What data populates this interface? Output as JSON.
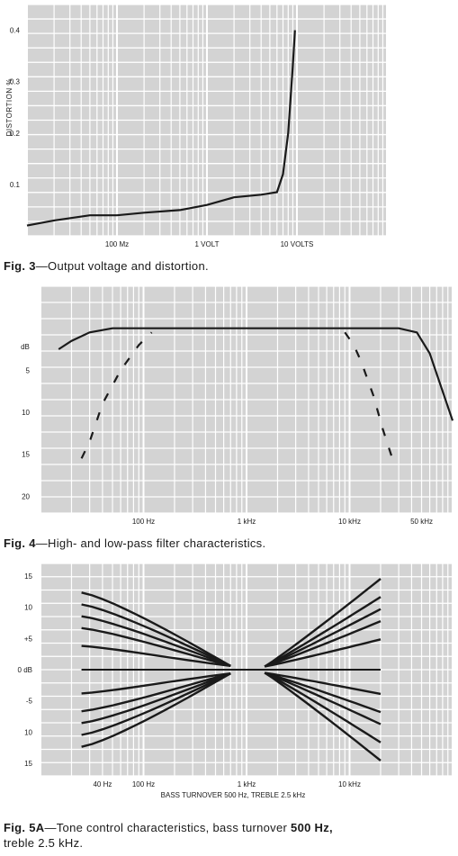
{
  "figures": [
    {
      "caption_label": "Fig. 3",
      "caption_text": "—Output voltage and distortion."
    },
    {
      "caption_label": "Fig. 4",
      "caption_text": "—High- and low-pass filter characteristics."
    },
    {
      "caption_label": "Fig. 5A",
      "caption_text_1": "—Tone control characteristics, bass turnover ",
      "caption_bold_1": "500 Hz,",
      "caption_text_2": "treble 2.5 kHz."
    }
  ],
  "colors": {
    "background": "#d3d3d3",
    "grid": "#ffffff",
    "curve": "#1a1a1a"
  },
  "chart_data": [
    {
      "type": "line",
      "title": "",
      "ylabel": "DISTORTION %",
      "xlabel": "",
      "x_scale": "log",
      "x_ticks": [
        "100 Mz",
        "1 VOLT",
        "10 VOLTS"
      ],
      "y_ticks": [
        "0.4",
        "0.3",
        "0.2",
        "0.1"
      ],
      "ylim": [
        0,
        0.45
      ],
      "series": [
        {
          "x": [
            0.01,
            0.02,
            0.05,
            0.1,
            0.2,
            0.5,
            1,
            2,
            4,
            6,
            7,
            8,
            9,
            9.5
          ],
          "y": [
            0.02,
            0.03,
            0.04,
            0.04,
            0.045,
            0.05,
            0.06,
            0.075,
            0.08,
            0.085,
            0.12,
            0.2,
            0.33,
            0.4
          ]
        }
      ]
    },
    {
      "type": "line",
      "title": "",
      "ylabel": "dB",
      "xlabel": "",
      "x_scale": "log",
      "x_ticks": [
        "100 Hz",
        "1 kHz",
        "10 kHz",
        "50 kHz"
      ],
      "y_ticks": [
        "5",
        "10",
        "15",
        "20"
      ],
      "ylim": [
        22,
        -5
      ],
      "series": [
        {
          "x": [
            15,
            20,
            30,
            50,
            100,
            1000,
            10000,
            30000,
            45000,
            60000,
            80000,
            100000
          ],
          "y": [
            2.5,
            1.5,
            0.5,
            0,
            0,
            0,
            0,
            0,
            0.5,
            3,
            7.5,
            11
          ]
        },
        {
          "x": [
            25,
            30,
            40,
            60,
            90,
            120
          ],
          "y": [
            15.5,
            13.5,
            9,
            5,
            2,
            0.5
          ]
        },
        {
          "x": [
            9000,
            11000,
            13000,
            17000,
            21000,
            26000
          ],
          "y": [
            0.5,
            2,
            4,
            8,
            12,
            15.5
          ]
        }
      ]
    },
    {
      "type": "line",
      "title": "",
      "ylabel": "",
      "xlabel": "BASS TURNOVER 500 Hz, TREBLE 2.5 kHz",
      "x_scale": "log",
      "x_ticks": [
        "40 Hz",
        "100 Hz",
        "1 kHz",
        "10 kHz"
      ],
      "y_ticks": [
        "15",
        "10",
        "+5",
        "",
        "0 dB",
        "-5",
        "10",
        "15"
      ],
      "ylim": [
        -17,
        17
      ],
      "bass_end_levels_db": [
        13,
        11,
        9,
        7,
        4,
        0,
        -4,
        -7,
        -9,
        -11,
        -13
      ],
      "treble_end_levels_db": [
        15,
        12,
        10,
        8,
        5,
        0,
        -4,
        -7,
        -9,
        -12,
        -15
      ]
    }
  ]
}
